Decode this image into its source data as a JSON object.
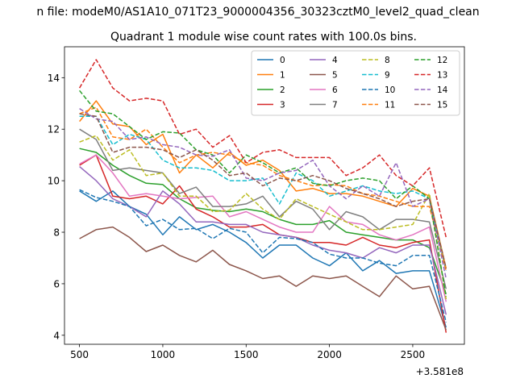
{
  "chart_data": {
    "type": "line",
    "suptitle": "n file: modeM0/AS1A10_071T23_9000004356_30323cztM0_level2_quad_clean",
    "title": "Quadrant 1 module wise count rates with 100.0s bins.",
    "xlabel": "",
    "ylabel": "",
    "x_offset_label": "+3.581e8",
    "xlim": [
      410,
      2810
    ],
    "ylim": [
      3.65,
      15.2
    ],
    "xticks": [
      500,
      1000,
      1500,
      2000,
      2500
    ],
    "yticks": [
      4,
      6,
      8,
      10,
      12,
      14
    ],
    "x": [
      500,
      600,
      700,
      800,
      900,
      1000,
      1100,
      1200,
      1300,
      1400,
      1500,
      1600,
      1700,
      1800,
      1900,
      2000,
      2100,
      2200,
      2300,
      2400,
      2500,
      2600,
      2700
    ],
    "legend_position": "top-right",
    "legend_columns": 4,
    "series": [
      {
        "name": "0",
        "color": "#1f77b4",
        "dash": "solid",
        "values": [
          9.6,
          9.2,
          9.6,
          9.0,
          8.7,
          7.9,
          8.6,
          8.1,
          8.3,
          8.0,
          7.6,
          7.0,
          7.5,
          7.5,
          7.0,
          6.7,
          7.2,
          6.5,
          6.9,
          6.4,
          6.5,
          6.5,
          4.3
        ]
      },
      {
        "name": "1",
        "color": "#ff7f0e",
        "dash": "solid",
        "values": [
          12.3,
          13.1,
          12.2,
          12.1,
          11.4,
          11.8,
          10.3,
          11.0,
          10.5,
          11.1,
          10.6,
          10.8,
          10.4,
          9.6,
          9.7,
          9.5,
          9.5,
          9.4,
          9.2,
          9.0,
          9.7,
          9.4,
          6.6
        ]
      },
      {
        "name": "2",
        "color": "#2ca02c",
        "dash": "solid",
        "values": [
          11.25,
          11.1,
          10.6,
          10.2,
          9.9,
          9.85,
          9.3,
          8.95,
          8.85,
          8.8,
          8.9,
          8.8,
          8.5,
          8.3,
          8.3,
          8.45,
          8.0,
          7.9,
          7.8,
          7.7,
          7.7,
          7.4,
          5.6
        ]
      },
      {
        "name": "3",
        "color": "#d62728",
        "dash": "solid",
        "values": [
          10.6,
          11.0,
          9.4,
          9.3,
          9.4,
          9.1,
          9.8,
          8.9,
          8.6,
          8.2,
          8.2,
          8.3,
          7.9,
          7.8,
          7.6,
          7.6,
          7.5,
          7.8,
          7.5,
          7.4,
          7.6,
          7.7,
          4.1
        ]
      },
      {
        "name": "4",
        "color": "#9467bd",
        "dash": "solid",
        "values": [
          10.55,
          10.0,
          9.3,
          9.0,
          8.6,
          9.6,
          9.1,
          8.4,
          8.4,
          8.3,
          8.3,
          8.0,
          7.9,
          7.8,
          7.5,
          7.3,
          7.2,
          7.0,
          7.4,
          7.2,
          7.5,
          7.5,
          4.8
        ]
      },
      {
        "name": "5",
        "color": "#8c564b",
        "dash": "solid",
        "values": [
          7.75,
          8.1,
          8.2,
          7.8,
          7.25,
          7.5,
          7.1,
          6.85,
          7.3,
          6.75,
          6.5,
          6.2,
          6.3,
          5.9,
          6.3,
          6.2,
          6.3,
          5.9,
          5.5,
          6.3,
          5.8,
          5.9,
          4.2
        ]
      },
      {
        "name": "6",
        "color": "#e377c2",
        "dash": "solid",
        "values": [
          10.65,
          11.0,
          10.3,
          9.4,
          9.5,
          9.4,
          9.3,
          9.35,
          9.4,
          8.6,
          8.8,
          8.5,
          8.2,
          8.0,
          8.0,
          9.0,
          8.4,
          8.3,
          7.9,
          7.7,
          7.9,
          8.2,
          5.3
        ]
      },
      {
        "name": "7",
        "color": "#7f7f7f",
        "dash": "solid",
        "values": [
          12.0,
          11.6,
          10.4,
          10.5,
          10.4,
          10.3,
          9.5,
          9.75,
          9.0,
          9.0,
          9.1,
          9.4,
          8.6,
          9.2,
          8.9,
          8.1,
          8.8,
          8.6,
          8.1,
          8.5,
          8.5,
          8.4,
          5.8
        ]
      },
      {
        "name": "8",
        "color": "#bcbd22",
        "dash": "dashed",
        "values": [
          11.5,
          11.75,
          10.8,
          11.2,
          10.2,
          10.3,
          9.4,
          9.4,
          8.8,
          8.85,
          9.5,
          8.9,
          8.5,
          9.3,
          9.0,
          8.7,
          8.4,
          8.1,
          8.1,
          8.2,
          8.3,
          9.5,
          5.4
        ]
      },
      {
        "name": "9",
        "color": "#17becf",
        "dash": "dashed",
        "values": [
          12.5,
          12.5,
          11.4,
          11.8,
          11.6,
          10.8,
          10.5,
          10.5,
          10.4,
          10.0,
          10.0,
          10.1,
          9.1,
          10.3,
          10.0,
          9.4,
          9.6,
          9.8,
          9.6,
          9.5,
          9.6,
          9.3,
          6.5
        ]
      },
      {
        "name": "10",
        "color": "#1f77b4",
        "dash": "dashed",
        "values": [
          9.65,
          9.35,
          9.2,
          9.0,
          8.25,
          8.5,
          8.1,
          8.15,
          7.75,
          8.15,
          8.0,
          7.2,
          7.8,
          7.75,
          7.6,
          7.15,
          7.0,
          7.0,
          6.8,
          6.7,
          7.1,
          7.1,
          4.5
        ]
      },
      {
        "name": "11",
        "color": "#ff7f0e",
        "dash": "dashed",
        "values": [
          12.6,
          12.85,
          11.7,
          11.6,
          12.0,
          11.3,
          10.7,
          11.0,
          11.1,
          11.0,
          10.7,
          10.6,
          10.2,
          10.0,
          9.8,
          9.85,
          9.8,
          9.5,
          9.4,
          9.2,
          9.0,
          9.0,
          6.5
        ]
      },
      {
        "name": "12",
        "color": "#2ca02c",
        "dash": "dashed",
        "values": [
          13.5,
          12.7,
          12.6,
          12.1,
          11.6,
          11.9,
          11.85,
          11.2,
          11.0,
          10.3,
          11.0,
          10.7,
          10.3,
          10.5,
          9.9,
          9.8,
          10.0,
          10.1,
          10.0,
          9.3,
          9.8,
          9.3,
          5.5
        ]
      },
      {
        "name": "13",
        "color": "#d62728",
        "dash": "dashed",
        "values": [
          13.6,
          14.7,
          13.6,
          13.1,
          13.2,
          13.1,
          11.8,
          12.0,
          11.3,
          11.75,
          10.7,
          11.1,
          11.2,
          10.9,
          10.9,
          10.9,
          10.2,
          10.5,
          11.0,
          10.2,
          9.8,
          10.5,
          7.8
        ]
      },
      {
        "name": "14",
        "color": "#9467bd",
        "dash": "dashed",
        "values": [
          12.8,
          12.4,
          12.3,
          11.6,
          11.7,
          11.4,
          11.3,
          11.0,
          10.95,
          11.2,
          10.1,
          10.0,
          10.3,
          10.4,
          10.8,
          9.8,
          9.3,
          9.8,
          9.4,
          10.7,
          9.0,
          9.3,
          6.2
        ]
      },
      {
        "name": "15",
        "color": "#8c564b",
        "dash": "dashed",
        "values": [
          12.6,
          12.5,
          11.1,
          11.3,
          11.3,
          11.2,
          10.9,
          11.2,
          10.8,
          10.2,
          10.3,
          9.8,
          10.1,
          10.0,
          10.2,
          10.0,
          9.7,
          9.5,
          9.3,
          9.0,
          9.2,
          9.3,
          6.6
        ]
      }
    ]
  }
}
